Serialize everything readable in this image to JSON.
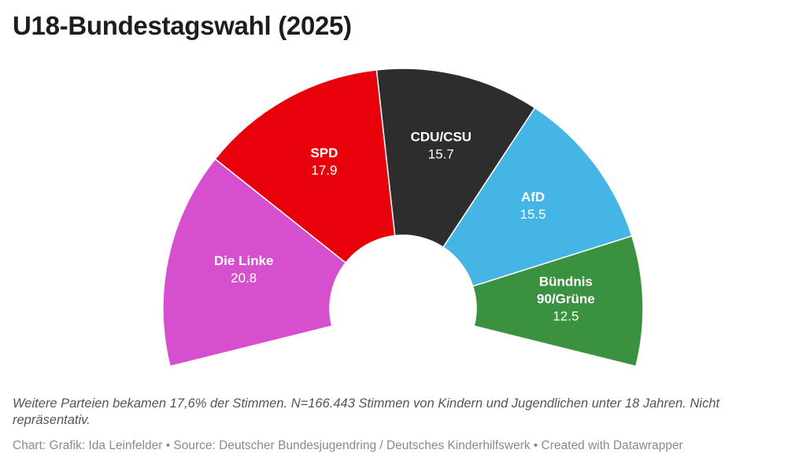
{
  "header": {
    "title": "U18-Bundestagswahl (2025)"
  },
  "chart_data": {
    "type": "pie",
    "variant": "semicircle-donut",
    "title": "U18-Bundestagswahl (2025)",
    "slices": [
      {
        "name": "Die Linke",
        "label_lines": [
          "Die Linke"
        ],
        "value": 20.8,
        "value_label": "20.8",
        "color": "#d64fce"
      },
      {
        "name": "SPD",
        "label_lines": [
          "SPD"
        ],
        "value": 17.9,
        "value_label": "17.9",
        "color": "#e8000b"
      },
      {
        "name": "CDU/CSU",
        "label_lines": [
          "CDU/CSU"
        ],
        "value": 15.7,
        "value_label": "15.7",
        "color": "#2d2d2d"
      },
      {
        "name": "AfD",
        "label_lines": [
          "AfD"
        ],
        "value": 15.5,
        "value_label": "15.5",
        "color": "#45b5e6"
      },
      {
        "name": "Bündnis 90/Grüne",
        "label_lines": [
          "Bündnis",
          "90/Grüne"
        ],
        "value": 12.5,
        "value_label": "12.5",
        "color": "#3a913f"
      }
    ]
  },
  "footer": {
    "notes": "Weitere Parteien bekamen 17,6% der Stimmen. N=166.443 Stimmen von Kindern und Jugendlichen unter 18 Jahren. Nicht repräsentativ.",
    "credits": "Chart: Grafik: Ida Leinfelder • Source: Deutscher Bundesjugendring / Deutsches Kinderhilfswerk • Created with Datawrapper"
  }
}
